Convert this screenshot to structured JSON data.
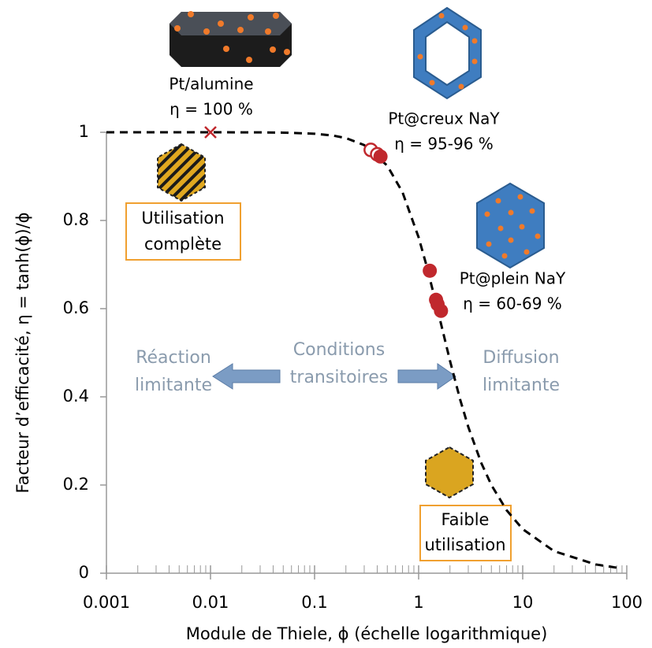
{
  "chart_data": {
    "type": "scatter",
    "xlabel": "Module de Thiele, ϕ (échelle logarithmique)",
    "ylabel": "Facteur d’efficacité, η = tanh(ϕ)/ϕ",
    "xscale": "log",
    "xlim": [
      0.001,
      100
    ],
    "xticks": [
      0.001,
      0.01,
      0.1,
      1,
      10,
      100
    ],
    "xminorticks": [
      0.002,
      0.003,
      0.004,
      0.005,
      0.006,
      0.007,
      0.008,
      0.009,
      0.02,
      0.03,
      0.04,
      0.05,
      0.06,
      0.07,
      0.08,
      0.09,
      0.2,
      0.3,
      0.4,
      0.5,
      0.6,
      0.7,
      0.8,
      0.9,
      2,
      3,
      4,
      5,
      6,
      7,
      8,
      9,
      20,
      30,
      40,
      50,
      60,
      70,
      80,
      90
    ],
    "ylim": [
      0,
      1
    ],
    "yticks": [
      0,
      0.2,
      0.4,
      0.6,
      0.8,
      1
    ],
    "series": [
      {
        "marker": "dashed-line",
        "color": "#000000",
        "x": [
          0.001,
          0.01,
          0.03,
          0.05,
          0.1,
          0.15,
          0.2,
          0.3,
          0.5,
          0.7,
          1,
          1.2,
          1.5,
          2,
          2.5,
          3,
          4,
          5,
          7,
          10,
          20,
          50,
          80
        ],
        "values": [
          1,
          1,
          0.9997,
          0.9992,
          0.9967,
          0.9926,
          0.9869,
          0.971,
          0.9242,
          0.8639,
          0.7616,
          0.6947,
          0.6035,
          0.482,
          0.3946,
          0.3317,
          0.2498,
          0.2,
          0.1429,
          0.1,
          0.05,
          0.02,
          0.0125
        ]
      },
      {
        "marker": "cross",
        "color": "#c0282d",
        "x": [
          0.01
        ],
        "values": [
          1
        ]
      },
      {
        "marker": "open-circle",
        "color": "#c0282d",
        "x": [
          0.347,
          0.4
        ],
        "values": [
          0.96,
          0.95
        ]
      },
      {
        "marker": "filled-circle",
        "color": "#c0282d",
        "x": [
          0.43,
          1.28,
          1.47,
          1.52,
          1.64
        ],
        "values": [
          0.945,
          0.686,
          0.62,
          0.61,
          0.595
        ]
      }
    ],
    "annotations": [
      [
        "Pt/alumine",
        "η = 100 %"
      ],
      [
        "Pt@creux NaY",
        "η = 95-96 %"
      ],
      [
        "Pt@plein NaY",
        "η = 60-69 %"
      ],
      [
        "Utilisation",
        "complète"
      ],
      [
        "Réaction",
        "limitante"
      ],
      [
        "Conditions",
        "transitoires"
      ],
      [
        "Diffusion",
        "limitante"
      ],
      [
        "Faible",
        "utilisation"
      ]
    ]
  }
}
